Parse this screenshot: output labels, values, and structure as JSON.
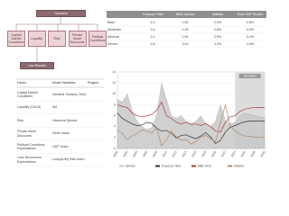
{
  "diagram": {
    "root": "Scenario",
    "children": [
      "Capital Market Conditions",
      "Liquidity",
      "Risk",
      "Private Asset Discounts",
      "Political Conditions"
    ],
    "result": "Use Results"
  },
  "factor_table": {
    "header": [
      "Factor",
      "Model Variables",
      "Regime"
    ],
    "rows": [
      [
        "Capital Market Conditions",
        "Nominal Treasury Yield"
      ],
      [
        "Liquidity (CM-M)",
        "5M"
      ],
      [
        "Risk",
        "Historical Spread"
      ],
      [
        "Private Asset Discounts",
        "Defer Value"
      ],
      [
        "Political Conditions Expectations",
        "GDP Index"
      ],
      [
        "Loss Recurrence Expectations",
        "Loss(AUM) Risk Index"
      ]
    ]
  },
  "scenario_table": {
    "header": [
      "Treasury Yield",
      "BB/B Spread",
      "Inflation",
      "Real GDP Growth"
    ],
    "rows": [
      [
        "Base",
        "4.2",
        "1.50",
        "2.0%",
        "1.8%"
      ],
      [
        "Moderate",
        "3.6",
        "2.25",
        "2.6%",
        "0.9%"
      ],
      [
        "Adverse",
        "3.1",
        "2.90",
        "2.9%",
        "0.1%"
      ],
      [
        "Severe",
        "2.8",
        "3.40",
        "3.2%",
        "-0.8%"
      ]
    ]
  },
  "chart_data": {
    "type": "line",
    "x": [
      2000,
      2001,
      2002,
      2003,
      2004,
      2005,
      2006,
      2007,
      2008,
      2009,
      2010,
      2011,
      2012,
      2013,
      2014,
      2015,
      2016,
      2017,
      2018,
      2019,
      2020,
      2021,
      2022,
      2023,
      2024,
      2025,
      2026,
      2027,
      2028,
      2029,
      2030
    ],
    "xlim": [
      2000,
      2030
    ],
    "xticks": [
      2000,
      2002,
      2004,
      2006,
      2008,
      2010,
      2012,
      2014,
      2016,
      2018,
      2020,
      2022,
      2024,
      2026,
      2028,
      2030
    ],
    "ylim": [
      0,
      14
    ],
    "yticks": [
      0,
      2,
      4,
      6,
      8,
      10,
      12,
      14
    ],
    "grid": true,
    "scenario": {
      "start": 2024,
      "end": 2030,
      "label": "Scenario",
      "color": "#dcdcdc"
    },
    "series": [
      {
        "name": "Spread",
        "style": "area",
        "color": "#c8c8c8",
        "values": [
          9,
          8.5,
          10,
          7,
          5,
          4,
          3.5,
          3.8,
          6,
          12,
          9,
          6,
          5.5,
          6,
          5,
          4.5,
          5,
          6,
          4.5,
          4,
          5,
          8,
          5,
          4.5,
          4.8,
          6,
          6.5,
          6.2,
          6,
          5.8,
          5.6
        ]
      },
      {
        "name": "Treasury Yield",
        "style": "line",
        "color": "#333333",
        "values": [
          6.5,
          5.5,
          5,
          4.5,
          4.2,
          4.3,
          4.8,
          4.6,
          3.7,
          3.2,
          3.3,
          2.8,
          1.9,
          2.4,
          2.5,
          2.1,
          1.8,
          2.3,
          2.9,
          2.1,
          0.9,
          1.5,
          3,
          3.9,
          4.2,
          4.6,
          4.9,
          5,
          5,
          5,
          5
        ]
      },
      {
        "name": "BBB Yield",
        "style": "line",
        "color": "#b33a3a",
        "values": [
          8,
          7.7,
          7.5,
          6.5,
          6,
          5.8,
          6,
          6.2,
          7,
          8.5,
          6,
          5.5,
          4.8,
          4.5,
          4.8,
          4.4,
          4.5,
          4.2,
          4.6,
          4,
          3.2,
          3,
          4.8,
          5.8,
          6,
          6.8,
          7.2,
          7.4,
          7.5,
          7.5,
          7.5
        ]
      },
      {
        "name": "Inflation",
        "style": "line",
        "color": "#b08a6a",
        "values": [
          3.4,
          2.8,
          1.6,
          2.3,
          2.7,
          3.4,
          3.2,
          2.8,
          3.8,
          0.5,
          1.6,
          3.2,
          2.1,
          1.5,
          1.6,
          0.8,
          1.3,
          2.1,
          2.4,
          1.8,
          1.2,
          4.7,
          8,
          4.1,
          3.2,
          2.6,
          2.3,
          2.2,
          2.1,
          2,
          2
        ]
      }
    ]
  }
}
